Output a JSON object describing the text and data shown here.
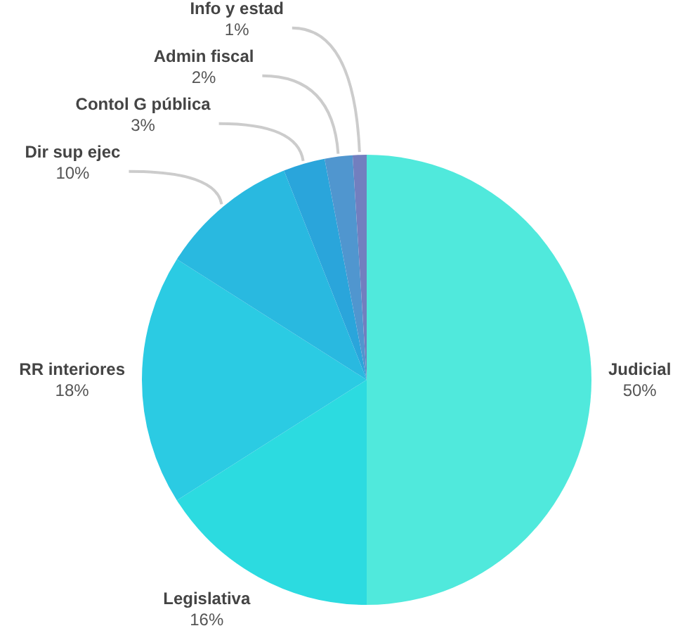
{
  "chart_data": {
    "type": "pie",
    "categories": [
      "Judicial",
      "Legislativa",
      "RR interiores",
      "Dir sup ejec",
      "Contol G pública",
      "Admin fiscal",
      "Info y estad"
    ],
    "values": [
      50,
      16,
      18,
      10,
      3,
      2,
      1
    ],
    "value_labels": [
      "50%",
      "16%",
      "18%",
      "10%",
      "3%",
      "2%",
      "1%"
    ],
    "colors": [
      "#50e9dc",
      "#2cdbe0",
      "#2bcbe3",
      "#29b9e0",
      "#2aa5db",
      "#5096cf",
      "#727fbf"
    ],
    "legend": false
  }
}
